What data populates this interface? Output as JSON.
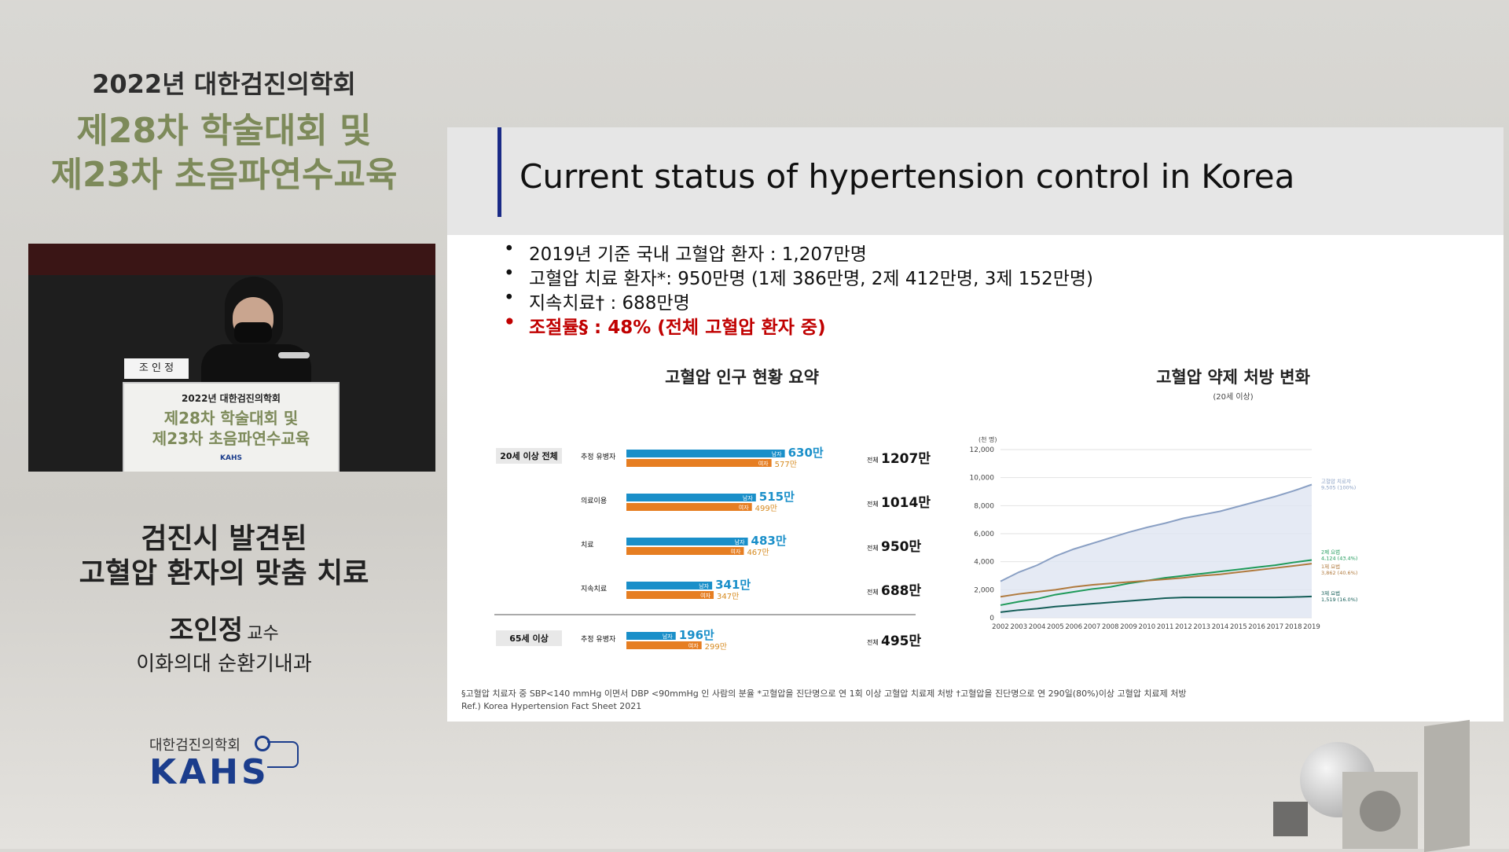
{
  "conference": {
    "line1": "2022년 대한검진의학회",
    "line2": "제28차 학술대회 및",
    "line3": "제23차 초음파연수교육"
  },
  "video": {
    "nameplate": "조 인 정",
    "podium_line1": "2022년 대한검진의학회",
    "podium_line2": "제28차 학술대회 및",
    "podium_line3": "제23차 초음파연수교육",
    "podium_logo": "KAHS"
  },
  "talk": {
    "title_line1": "검진시 발견된",
    "title_line2": "고혈압 환자의 맞춤 치료",
    "speaker_name": "조인정",
    "speaker_rank": "교수",
    "affiliation": "이화의대 순환기내과"
  },
  "logo": {
    "korean": "대한검진의학회",
    "english": "KAHS"
  },
  "slide": {
    "title": "Current status of hypertension control in Korea",
    "bullets": [
      {
        "text": "2019년 기준 국내 고혈압 환자 : 1,207만명",
        "red": false
      },
      {
        "text": "고혈압 치료 환자*: 950만명 (1제 386만명, 2제 412만명, 3제 152만명)",
        "red": false
      },
      {
        "text": "지속치료† : 688만명",
        "red": false
      },
      {
        "text": "조절률§ : 48% (전체 고혈압 환자 중)",
        "red": true
      }
    ],
    "footnote": "§고혈압 치료자 중 SBP<140 mmHg 이면서 DBP <90mmHg 인 사람의 분율 *고혈압을 진단명으로 연 1회 이상 고혈압 치료제 처방 †고혈압을 진단명으로 연 290일(80%)이상 고혈압 치료제 처방",
    "ref": "Ref.) Korea Hypertension Fact Sheet 2021"
  },
  "chart_data": [
    {
      "type": "bar",
      "title": "고혈압 인구 현황 요약",
      "unit": "만",
      "series": [
        {
          "name": "남자"
        },
        {
          "name": "여자"
        }
      ],
      "groups": [
        {
          "group": "20세 이상 전체",
          "category": "추정 유병자",
          "male": 630,
          "female": 577,
          "total": 1207
        },
        {
          "group": "",
          "category": "의료이용",
          "male": 515,
          "female": 499,
          "total": 1014
        },
        {
          "group": "",
          "category": "치료",
          "male": 483,
          "female": 467,
          "total": 950
        },
        {
          "group": "",
          "category": "지속치료",
          "male": 341,
          "female": 347,
          "total": 688
        },
        {
          "group": "65세 이상",
          "category": "추정 유병자",
          "male": 196,
          "female": 299,
          "total": 495
        }
      ],
      "total_label": "전체",
      "colors": {
        "male": "#1a8fc9",
        "female": "#e67e22",
        "male_text": "#1a8fc9",
        "female_text": "#d68a1f"
      }
    },
    {
      "type": "line",
      "title": "고혈압 약제 처방 변화",
      "subtitle": "(20세 이상)",
      "ylabel": "(천 명)",
      "ylim": [
        0,
        12000
      ],
      "yticks": [
        0,
        2000,
        4000,
        6000,
        8000,
        10000,
        12000
      ],
      "ytick_labels": [
        "0",
        "2,000",
        "4,000",
        "6,000",
        "8,000",
        "10,000",
        "12,000"
      ],
      "x": [
        2002,
        2003,
        2004,
        2005,
        2006,
        2007,
        2008,
        2009,
        2010,
        2011,
        2012,
        2013,
        2014,
        2015,
        2016,
        2017,
        2018,
        2019
      ],
      "series": [
        {
          "name": "고혈압 치료자",
          "end_label": "9,505 (100%)",
          "color": "#8aa0c4",
          "area": true,
          "values": [
            2600,
            3250,
            3750,
            4400,
            4900,
            5300,
            5700,
            6100,
            6450,
            6750,
            7100,
            7350,
            7600,
            7950,
            8300,
            8650,
            9050,
            9505
          ]
        },
        {
          "name": "2제 요법",
          "end_label": "4,124 (43.4%)",
          "color": "#1f9a5a",
          "values": [
            900,
            1150,
            1350,
            1650,
            1850,
            2050,
            2200,
            2450,
            2650,
            2850,
            3000,
            3150,
            3300,
            3450,
            3600,
            3750,
            3950,
            4124
          ]
        },
        {
          "name": "1제 요법",
          "end_label": "3,862 (40.6%)",
          "color": "#b07a3e",
          "values": [
            1500,
            1700,
            1850,
            2000,
            2200,
            2350,
            2450,
            2550,
            2650,
            2750,
            2850,
            3000,
            3100,
            3250,
            3400,
            3550,
            3700,
            3862
          ]
        },
        {
          "name": "3제 요법",
          "end_label": "1,519 (16.0%)",
          "color": "#155e58",
          "values": [
            400,
            550,
            650,
            800,
            900,
            1000,
            1100,
            1200,
            1300,
            1400,
            1450,
            1450,
            1450,
            1450,
            1450,
            1450,
            1480,
            1519
          ]
        }
      ]
    }
  ]
}
